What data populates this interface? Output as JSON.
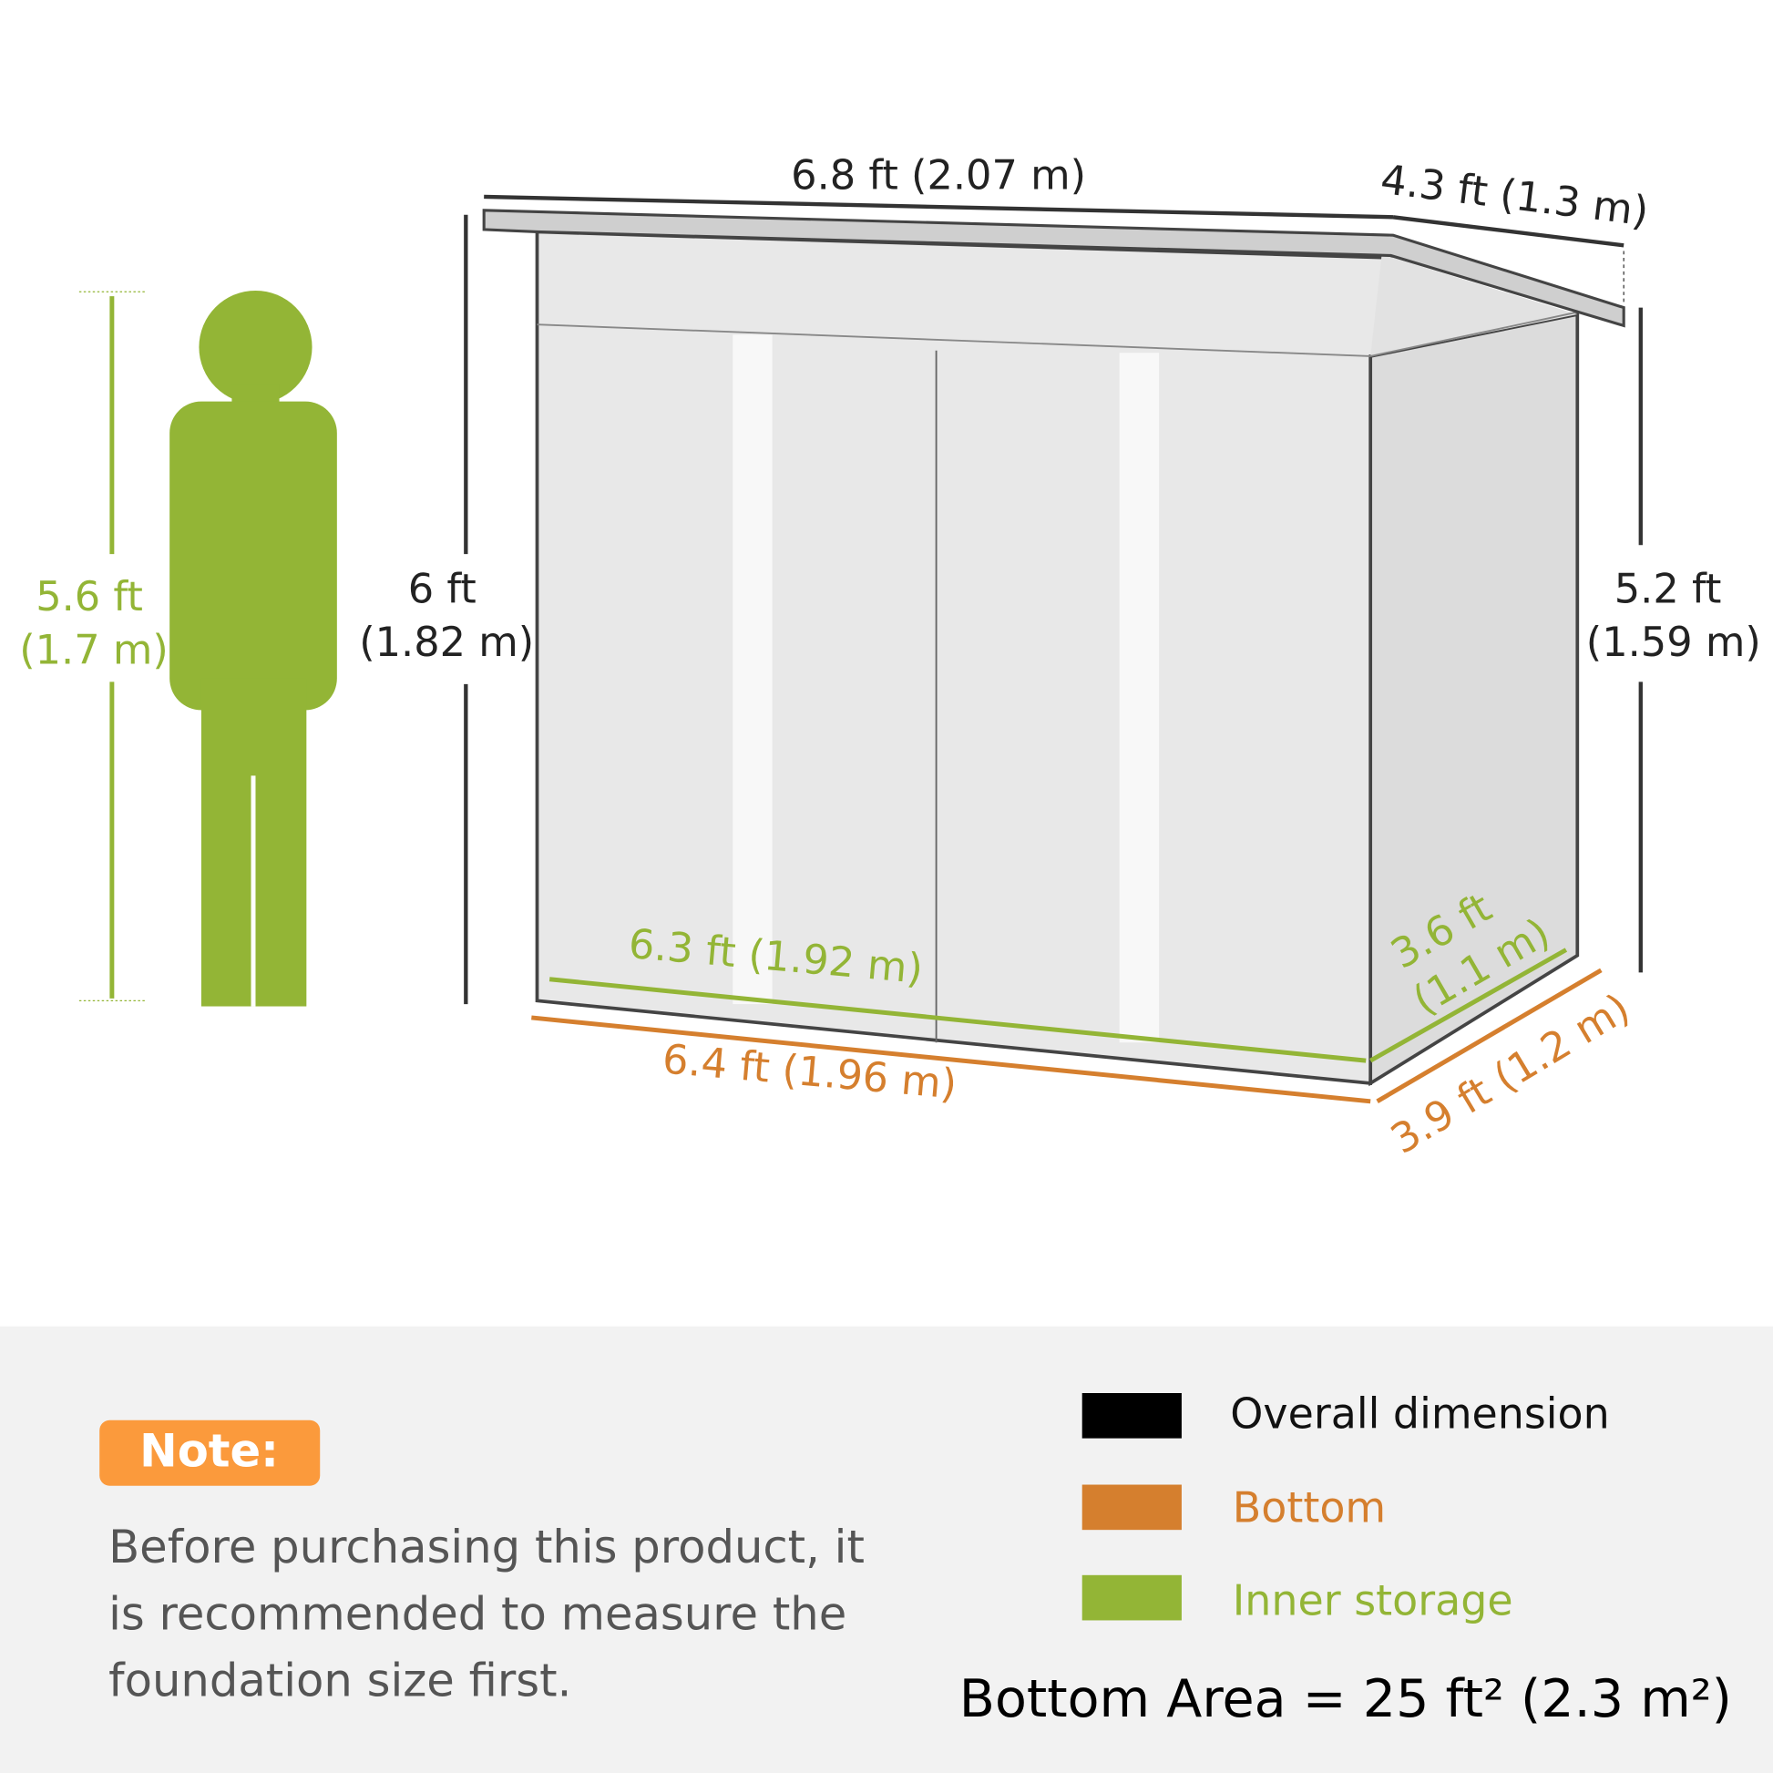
{
  "colors": {
    "overall": "#000000",
    "bottom": "#d57f2e",
    "inner": "#93b536",
    "note_bg": "#fb9a3c",
    "panel_bg": "#f2f2f2",
    "body_text": "#555555"
  },
  "dimensions": {
    "overall_width": "6.8 ft (2.07 m)",
    "overall_depth": "4.3 ft (1.3 m)",
    "front_height_ft": "6 ft",
    "front_height_m": "(1.82 m)",
    "back_height_ft": "5.2 ft",
    "back_height_m": "(1.59 m)",
    "person_height_ft": "5.6 ft",
    "person_height_m": "(1.7 m)",
    "inner_width": "6.3 ft (1.92 m)",
    "inner_depth_ft": "3.6 ft",
    "inner_depth_m": "(1.1 m)",
    "bottom_width": "6.4 ft (1.96 m)",
    "bottom_depth": "3.9 ft (1.2 m)"
  },
  "note": {
    "label": "Note:",
    "lines": [
      "Before purchasing this product, it",
      "is recommended to measure the",
      "foundation size first."
    ]
  },
  "legend": [
    {
      "label": "Overall dimension",
      "color": "#000000"
    },
    {
      "label": "Bottom",
      "color": "#d57f2e"
    },
    {
      "label": "Inner storage",
      "color": "#93b536"
    }
  ],
  "bottom_area": "Bottom Area = 25 ft² (2.3 m²)"
}
